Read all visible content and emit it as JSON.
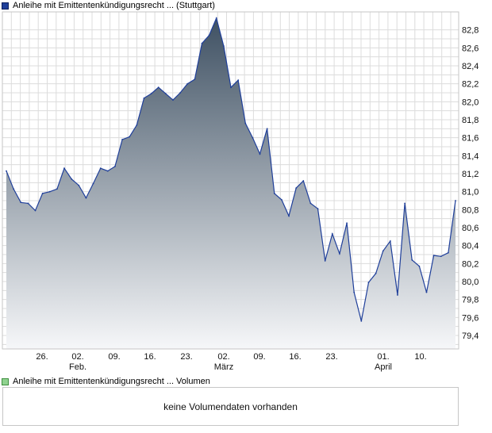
{
  "legend": {
    "price_label": "Anleihe mit Emittentenkündigungsrecht ...  (Stuttgart)",
    "volume_label": "Anleihe mit Emittentenkündigungsrecht ...  Volumen"
  },
  "volume_panel": {
    "message": "keine Volumendaten vorhanden"
  },
  "colors": {
    "line": "#1f3f9a",
    "fill_top": "#3f5163",
    "fill_bottom": "#f6f7f9",
    "grid": "#dcdcdc"
  },
  "chart_data": {
    "type": "area",
    "title": "",
    "xlabel": "",
    "ylabel": "",
    "ylim": [
      79.25,
      83.0
    ],
    "y_ticks": [
      "82,8",
      "82,6",
      "82,4",
      "82,2",
      "82,0",
      "81,8",
      "81,6",
      "81,4",
      "81,2",
      "81,0",
      "80,8",
      "80,6",
      "80,4",
      "80,2",
      "80,0",
      "79,8",
      "79,6",
      "79,4"
    ],
    "x_ticks": [
      {
        "label": "26.",
        "sub": ""
      },
      {
        "label": "02.",
        "sub": "Feb."
      },
      {
        "label": "09.",
        "sub": ""
      },
      {
        "label": "16.",
        "sub": ""
      },
      {
        "label": "23.",
        "sub": ""
      },
      {
        "label": "02.",
        "sub": "März"
      },
      {
        "label": "09.",
        "sub": ""
      },
      {
        "label": "16.",
        "sub": ""
      },
      {
        "label": "23.",
        "sub": ""
      },
      {
        "label": "01.",
        "sub": "April"
      },
      {
        "label": "10.",
        "sub": ""
      }
    ],
    "grid": true,
    "y_axis_position": "right",
    "series": [
      {
        "values": [
          81.23,
          81.03,
          80.88,
          80.87,
          80.79,
          80.98,
          81.0,
          81.03,
          81.26,
          81.14,
          81.07,
          80.93,
          81.09,
          81.26,
          81.23,
          81.28,
          81.58,
          81.61,
          81.74,
          82.04,
          82.09,
          82.16,
          82.09,
          82.02,
          82.1,
          82.2,
          82.25,
          82.65,
          82.74,
          82.93,
          82.62,
          82.16,
          82.24,
          81.76,
          81.6,
          81.42,
          81.7,
          80.98,
          80.91,
          80.73,
          81.04,
          81.12,
          80.87,
          80.81,
          80.23,
          80.53,
          80.31,
          80.65,
          79.88,
          79.56,
          79.99,
          80.09,
          80.34,
          80.45,
          79.85,
          80.87,
          80.24,
          80.17,
          79.88,
          80.29,
          80.28,
          80.32,
          80.9
        ]
      }
    ]
  }
}
